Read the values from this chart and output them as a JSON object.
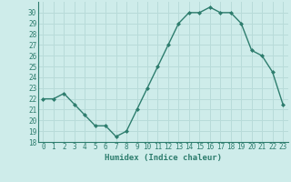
{
  "x": [
    0,
    1,
    2,
    3,
    4,
    5,
    6,
    7,
    8,
    9,
    10,
    11,
    12,
    13,
    14,
    15,
    16,
    17,
    18,
    19,
    20,
    21,
    22,
    23
  ],
  "y": [
    22,
    22,
    22.5,
    21.5,
    20.5,
    19.5,
    19.5,
    18.5,
    19,
    21,
    23,
    25,
    27,
    29,
    30,
    30,
    30.5,
    30,
    30,
    29,
    26.5,
    26,
    24.5,
    21.5
  ],
  "xlabel": "Humidex (Indice chaleur)",
  "ylim": [
    18,
    31
  ],
  "xlim": [
    -0.5,
    23.5
  ],
  "yticks": [
    18,
    19,
    20,
    21,
    22,
    23,
    24,
    25,
    26,
    27,
    28,
    29,
    30
  ],
  "xticks": [
    0,
    1,
    2,
    3,
    4,
    5,
    6,
    7,
    8,
    9,
    10,
    11,
    12,
    13,
    14,
    15,
    16,
    17,
    18,
    19,
    20,
    21,
    22,
    23
  ],
  "line_color": "#2e7d6e",
  "marker": "D",
  "marker_size": 2.0,
  "bg_color": "#ceecea",
  "grid_color": "#b8dbd9",
  "tick_label_color": "#2e7d6e",
  "xlabel_color": "#2e7d6e",
  "line_width": 1.0,
  "tick_fontsize": 5.5,
  "xlabel_fontsize": 6.5
}
